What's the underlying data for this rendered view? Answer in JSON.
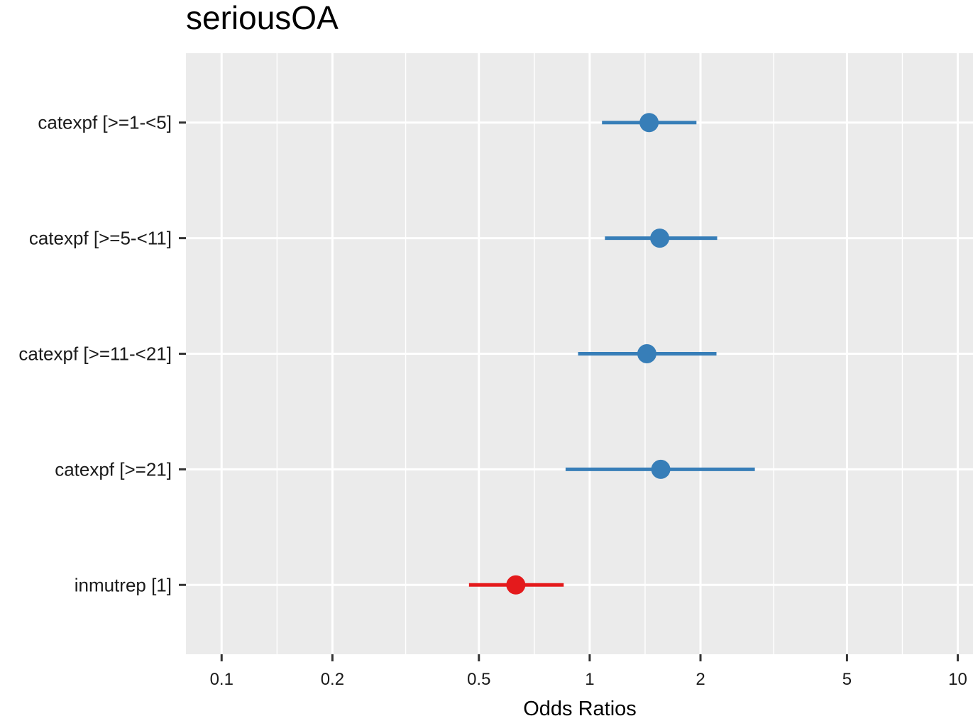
{
  "chart_data": {
    "type": "forest",
    "title": "seriousOA",
    "xlabel": "Odds Ratios",
    "ylabel": "",
    "x_scale": "log",
    "xlim": [
      0.08,
      11
    ],
    "x_major_ticks": [
      0.1,
      0.2,
      0.5,
      1,
      2,
      5,
      10
    ],
    "x_tick_labels": [
      "0.1",
      "0.2",
      "0.5",
      "1",
      "2",
      "5",
      "10"
    ],
    "grid": true,
    "legend": "none",
    "colors": {
      "positive": "#377eb8",
      "negative": "#e41a1c",
      "panel": "#ebebeb",
      "grid": "#ffffff"
    },
    "terms": [
      {
        "label": "catexpf [>=1-<5]",
        "estimate": 1.45,
        "ci_low": 1.08,
        "ci_high": 1.95,
        "direction": "positive"
      },
      {
        "label": "catexpf [>=5-<11]",
        "estimate": 1.55,
        "ci_low": 1.1,
        "ci_high": 2.22,
        "direction": "positive"
      },
      {
        "label": "catexpf [>=11-<21]",
        "estimate": 1.43,
        "ci_low": 0.93,
        "ci_high": 2.21,
        "direction": "positive"
      },
      {
        "label": "catexpf [>=21]",
        "estimate": 1.56,
        "ci_low": 0.86,
        "ci_high": 2.81,
        "direction": "positive"
      },
      {
        "label": "inmutrep [1]",
        "estimate": 0.63,
        "ci_low": 0.47,
        "ci_high": 0.85,
        "direction": "negative"
      }
    ]
  }
}
